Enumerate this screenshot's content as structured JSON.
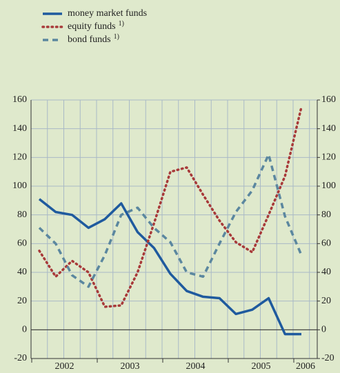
{
  "chart_data": {
    "type": "line",
    "categories": [
      null,
      null,
      null,
      null,
      null,
      null,
      null,
      null,
      null,
      null,
      null,
      null,
      null,
      null,
      null,
      null,
      null
    ],
    "x_tick_labels": [
      "2002",
      "2003",
      "2004",
      "2005",
      "2006"
    ],
    "series": [
      {
        "name": "money market funds",
        "color": "#1f5a9e",
        "dash": "solid",
        "values": [
          91,
          82,
          80,
          71,
          77,
          88,
          68,
          57,
          39,
          27,
          23,
          22,
          11,
          14,
          22,
          -3,
          -3
        ]
      },
      {
        "name": "equity funds",
        "note": "1)",
        "color": "#a83a3a",
        "dash": "dotted",
        "values": [
          55,
          37,
          48,
          40,
          16,
          17,
          40,
          74,
          110,
          113,
          94,
          76,
          61,
          54,
          80,
          107,
          155
        ]
      },
      {
        "name": "bond funds",
        "note": "1)",
        "color": "#5b879f",
        "dash": "dashed",
        "values": [
          71,
          60,
          38,
          30,
          52,
          80,
          85,
          71,
          61,
          40,
          37,
          60,
          82,
          97,
          122,
          79,
          52
        ]
      }
    ],
    "ylim": [
      -20,
      160
    ],
    "yticks": [
      -20,
      0,
      20,
      40,
      60,
      80,
      100,
      120,
      140,
      160
    ],
    "y2lim": [
      -20,
      160
    ],
    "y2ticks": [
      -20,
      0,
      20,
      40,
      60,
      80,
      100,
      120,
      140,
      160
    ],
    "grid": true
  }
}
